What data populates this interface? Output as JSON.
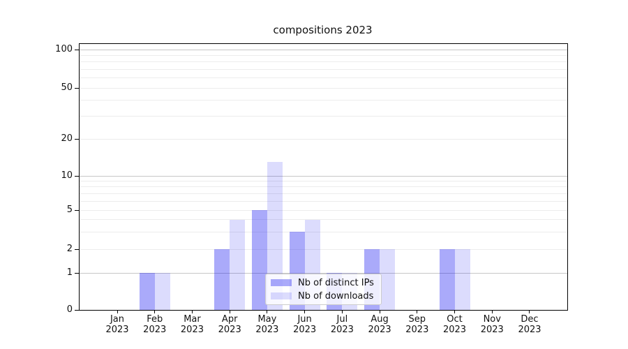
{
  "title": "compositions 2023",
  "legend": {
    "items": [
      {
        "label": "Nb of distinct IPs",
        "color_key": "ips_bar"
      },
      {
        "label": "Nb of downloads",
        "color_key": "downloads_bar"
      }
    ]
  },
  "colors": {
    "ips_bar": "rgba(20,20,240,0.36)",
    "downloads_bar": "rgba(20,20,240,0.15)",
    "major_grid": "#c6c6c6",
    "minor_grid": "#ececec",
    "axis": "#000000",
    "text": "#111111"
  },
  "chart_data": {
    "type": "bar",
    "title": "compositions 2023",
    "categories": [
      "Jan 2023",
      "Feb 2023",
      "Mar 2023",
      "Apr 2023",
      "May 2023",
      "Jun 2023",
      "Jul 2023",
      "Aug 2023",
      "Sep 2023",
      "Oct 2023",
      "Nov 2023",
      "Dec 2023"
    ],
    "series": [
      {
        "name": "Nb of distinct IPs",
        "values": [
          0,
          1,
          0,
          2,
          5,
          3,
          1,
          2,
          0,
          2,
          0,
          0
        ]
      },
      {
        "name": "Nb of downloads",
        "values": [
          0,
          1,
          0,
          4,
          13,
          4,
          1,
          2,
          0,
          2,
          0,
          0
        ]
      }
    ],
    "xlabel": "",
    "ylabel": "",
    "yscale": "log-like (compressed near zero)",
    "ylim": [
      0,
      110
    ],
    "yticks": [
      0,
      1,
      2,
      5,
      10,
      20,
      50,
      100
    ],
    "major_gridlines": [
      1,
      10,
      100
    ],
    "minor_gridlines": [
      2,
      3,
      4,
      5,
      6,
      7,
      8,
      9,
      20,
      30,
      40,
      50,
      60,
      70,
      80,
      90
    ],
    "grid": true,
    "legend_position": "lower center, inside plot"
  }
}
